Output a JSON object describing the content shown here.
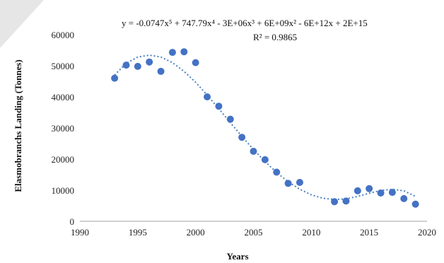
{
  "chart_data": {
    "type": "scatter",
    "xlabel": "Years",
    "ylabel": "Elasmobranchs Landing (Tonnes)",
    "xlim": [
      1990,
      2020
    ],
    "ylim": [
      0,
      60000
    ],
    "x_ticks": [
      "1990",
      "1995",
      "2000",
      "2005",
      "2010",
      "2015",
      "2020"
    ],
    "y_ticks": [
      "0",
      "10000",
      "20000",
      "30000",
      "40000",
      "50000",
      "60000"
    ],
    "grid": false,
    "colors": {
      "points": "#4472c4",
      "trendline": "#4a7fbf"
    },
    "equation": "y = -0.0747x⁵ + 747.79x⁴ - 3E+06x³ + 6E+09x² - 6E+12x + 2E+15",
    "r_squared": "R² = 0.9865",
    "points": [
      {
        "x": 1993,
        "y": 46000
      },
      {
        "x": 1994,
        "y": 50200
      },
      {
        "x": 1995,
        "y": 49800
      },
      {
        "x": 1996,
        "y": 51200
      },
      {
        "x": 1997,
        "y": 48200
      },
      {
        "x": 1998,
        "y": 54300
      },
      {
        "x": 1999,
        "y": 54500
      },
      {
        "x": 2000,
        "y": 51000
      },
      {
        "x": 2001,
        "y": 40000
      },
      {
        "x": 2002,
        "y": 37000
      },
      {
        "x": 2003,
        "y": 32800
      },
      {
        "x": 2004,
        "y": 27000
      },
      {
        "x": 2005,
        "y": 22500
      },
      {
        "x": 2006,
        "y": 19800
      },
      {
        "x": 2007,
        "y": 15800
      },
      {
        "x": 2008,
        "y": 12200
      },
      {
        "x": 2009,
        "y": 12500
      },
      {
        "x": 2012,
        "y": 6300
      },
      {
        "x": 2013,
        "y": 6500
      },
      {
        "x": 2014,
        "y": 9800
      },
      {
        "x": 2015,
        "y": 10500
      },
      {
        "x": 2016,
        "y": 9100
      },
      {
        "x": 2017,
        "y": 9300
      },
      {
        "x": 2018,
        "y": 7300
      },
      {
        "x": 2019,
        "y": 5500
      }
    ],
    "trendline_points": [
      {
        "x": 1993,
        "y": 47000
      },
      {
        "x": 1994,
        "y": 50800
      },
      {
        "x": 1995,
        "y": 52800
      },
      {
        "x": 1996,
        "y": 53400
      },
      {
        "x": 1997,
        "y": 52800
      },
      {
        "x": 1998,
        "y": 51000
      },
      {
        "x": 1999,
        "y": 48200
      },
      {
        "x": 2000,
        "y": 44700
      },
      {
        "x": 2001,
        "y": 40600
      },
      {
        "x": 2002,
        "y": 36200
      },
      {
        "x": 2003,
        "y": 31700
      },
      {
        "x": 2004,
        "y": 27300
      },
      {
        "x": 2005,
        "y": 23100
      },
      {
        "x": 2006,
        "y": 19200
      },
      {
        "x": 2007,
        "y": 15700
      },
      {
        "x": 2008,
        "y": 12700
      },
      {
        "x": 2009,
        "y": 10300
      },
      {
        "x": 2010,
        "y": 8500
      },
      {
        "x": 2011,
        "y": 7400
      },
      {
        "x": 2012,
        "y": 7000
      },
      {
        "x": 2013,
        "y": 7200
      },
      {
        "x": 2014,
        "y": 8000
      },
      {
        "x": 2015,
        "y": 9000
      },
      {
        "x": 2016,
        "y": 9900
      },
      {
        "x": 2017,
        "y": 10300
      },
      {
        "x": 2018,
        "y": 9800
      },
      {
        "x": 2019,
        "y": 8000
      }
    ]
  }
}
